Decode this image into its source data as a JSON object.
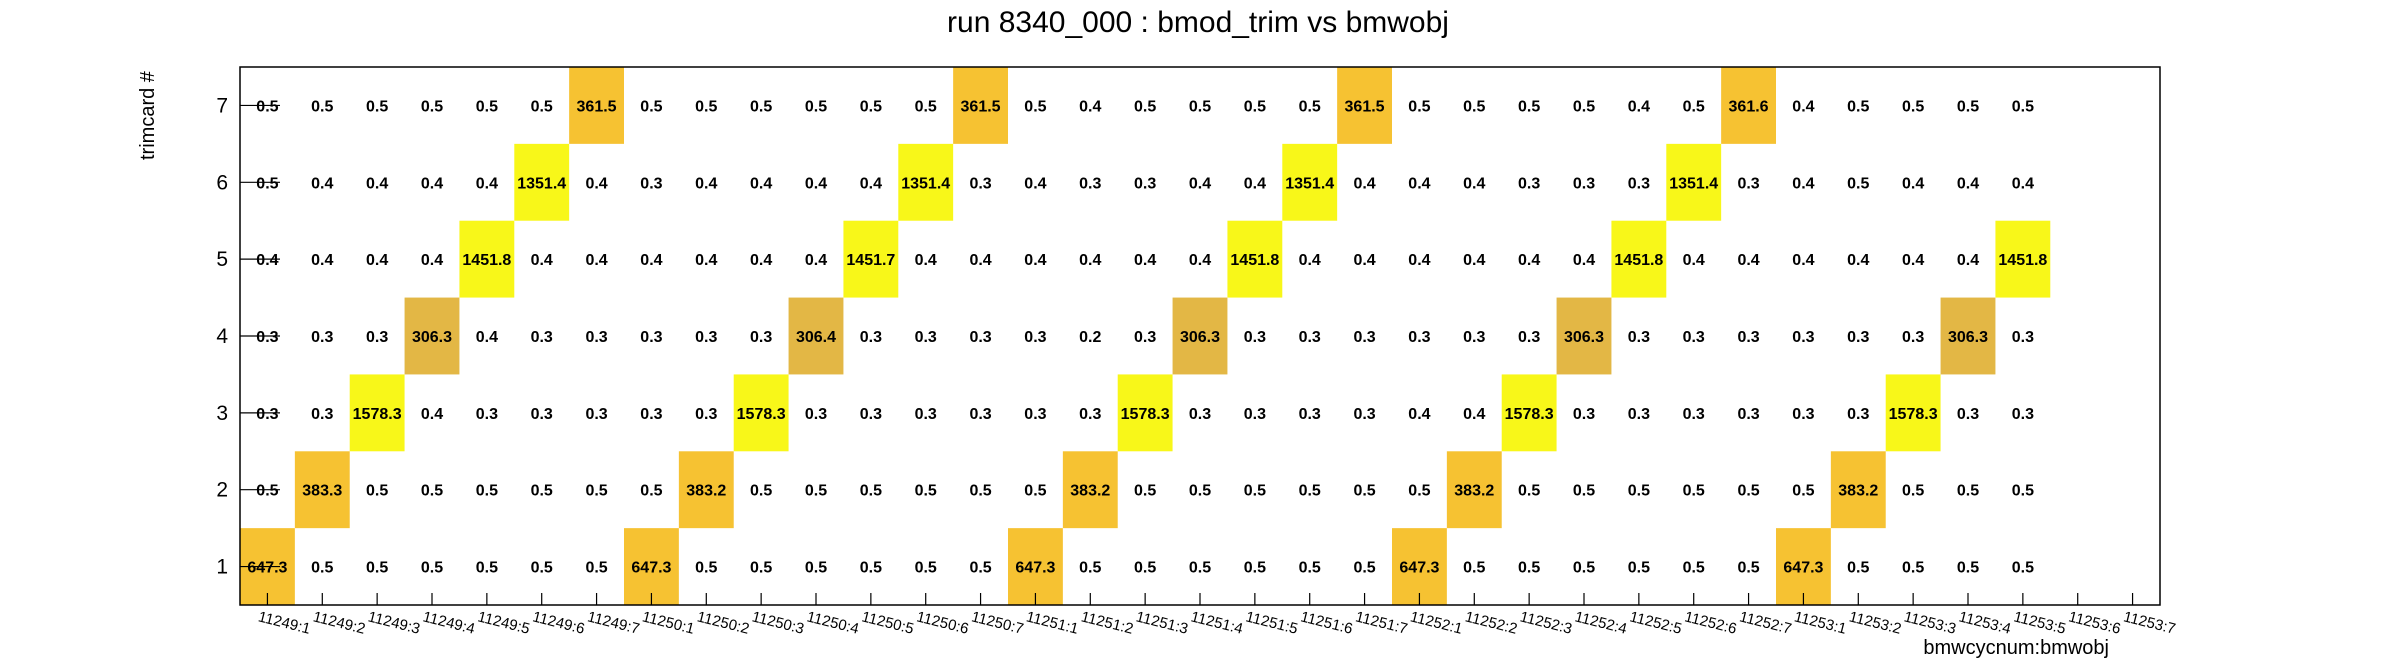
{
  "chart_data": {
    "type": "heatmap",
    "title": "run 8340_000 : bmod_trim vs bmwobj",
    "xlabel": "bmwcycnum:bmwobj",
    "ylabel": "trimcard #",
    "x_categories": [
      "11249:1",
      "11249:2",
      "11249:3",
      "11249:4",
      "11249:5",
      "11249:6",
      "11249:7",
      "11250:1",
      "11250:2",
      "11250:3",
      "11250:4",
      "11250:5",
      "11250:6",
      "11250:7",
      "11251:1",
      "11251:2",
      "11251:3",
      "11251:4",
      "11251:5",
      "11251:6",
      "11251:7",
      "11252:1",
      "11252:2",
      "11252:3",
      "11252:4",
      "11252:5",
      "11252:6",
      "11252:7",
      "11253:1",
      "11253:2",
      "11253:3",
      "11253:4",
      "11253:5",
      "11253:6",
      "11253:7"
    ],
    "y_categories": [
      "1",
      "2",
      "3",
      "4",
      "5",
      "6",
      "7"
    ],
    "values": [
      [
        "647.3",
        "0.5",
        "0.5",
        "0.5",
        "0.5",
        "0.5",
        "0.5",
        "647.3",
        "0.5",
        "0.5",
        "0.5",
        "0.5",
        "0.5",
        "0.5",
        "647.3",
        "0.5",
        "0.5",
        "0.5",
        "0.5",
        "0.5",
        "0.5",
        "647.3",
        "0.5",
        "0.5",
        "0.5",
        "0.5",
        "0.5",
        "0.5",
        "647.3",
        "0.5",
        "0.5",
        "0.5",
        "0.5",
        "",
        ""
      ],
      [
        "0.5",
        "383.3",
        "0.5",
        "0.5",
        "0.5",
        "0.5",
        "0.5",
        "0.5",
        "383.2",
        "0.5",
        "0.5",
        "0.5",
        "0.5",
        "0.5",
        "0.5",
        "383.2",
        "0.5",
        "0.5",
        "0.5",
        "0.5",
        "0.5",
        "0.5",
        "383.2",
        "0.5",
        "0.5",
        "0.5",
        "0.5",
        "0.5",
        "0.5",
        "383.2",
        "0.5",
        "0.5",
        "0.5",
        "",
        ""
      ],
      [
        "0.3",
        "0.3",
        "1578.3",
        "0.4",
        "0.3",
        "0.3",
        "0.3",
        "0.3",
        "0.3",
        "1578.3",
        "0.3",
        "0.3",
        "0.3",
        "0.3",
        "0.3",
        "0.3",
        "1578.3",
        "0.3",
        "0.3",
        "0.3",
        "0.3",
        "0.4",
        "0.4",
        "1578.3",
        "0.3",
        "0.3",
        "0.3",
        "0.3",
        "0.3",
        "0.3",
        "1578.3",
        "0.3",
        "0.3",
        "",
        ""
      ],
      [
        "0.3",
        "0.3",
        "0.3",
        "306.3",
        "0.4",
        "0.3",
        "0.3",
        "0.3",
        "0.3",
        "0.3",
        "306.4",
        "0.3",
        "0.3",
        "0.3",
        "0.3",
        "0.2",
        "0.3",
        "306.3",
        "0.3",
        "0.3",
        "0.3",
        "0.3",
        "0.3",
        "0.3",
        "306.3",
        "0.3",
        "0.3",
        "0.3",
        "0.3",
        "0.3",
        "0.3",
        "306.3",
        "0.3",
        "",
        ""
      ],
      [
        "0.4",
        "0.4",
        "0.4",
        "0.4",
        "1451.8",
        "0.4",
        "0.4",
        "0.4",
        "0.4",
        "0.4",
        "0.4",
        "1451.7",
        "0.4",
        "0.4",
        "0.4",
        "0.4",
        "0.4",
        "0.4",
        "1451.8",
        "0.4",
        "0.4",
        "0.4",
        "0.4",
        "0.4",
        "0.4",
        "1451.8",
        "0.4",
        "0.4",
        "0.4",
        "0.4",
        "0.4",
        "0.4",
        "1451.8",
        "",
        ""
      ],
      [
        "0.5",
        "0.4",
        "0.4",
        "0.4",
        "0.4",
        "1351.4",
        "0.4",
        "0.3",
        "0.4",
        "0.4",
        "0.4",
        "0.4",
        "1351.4",
        "0.3",
        "0.4",
        "0.3",
        "0.3",
        "0.4",
        "0.4",
        "1351.4",
        "0.4",
        "0.4",
        "0.4",
        "0.3",
        "0.3",
        "0.3",
        "1351.4",
        "0.3",
        "0.4",
        "0.5",
        "0.4",
        "0.4",
        "0.4",
        "",
        ""
      ],
      [
        "0.5",
        "0.5",
        "0.5",
        "0.5",
        "0.5",
        "0.5",
        "361.5",
        "0.5",
        "0.5",
        "0.5",
        "0.5",
        "0.5",
        "0.5",
        "361.5",
        "0.5",
        "0.4",
        "0.5",
        "0.5",
        "0.5",
        "0.5",
        "361.5",
        "0.5",
        "0.5",
        "0.5",
        "0.5",
        "0.4",
        "0.5",
        "361.6",
        "0.4",
        "0.5",
        "0.5",
        "0.5",
        "0.5",
        "",
        ""
      ]
    ],
    "grid": false,
    "legend": "none",
    "colors": {
      "yellow": "#f8f719",
      "gold": "#f6c232",
      "amber": "#e3b745",
      "frame": "#000000",
      "background": "#ffffff"
    }
  }
}
